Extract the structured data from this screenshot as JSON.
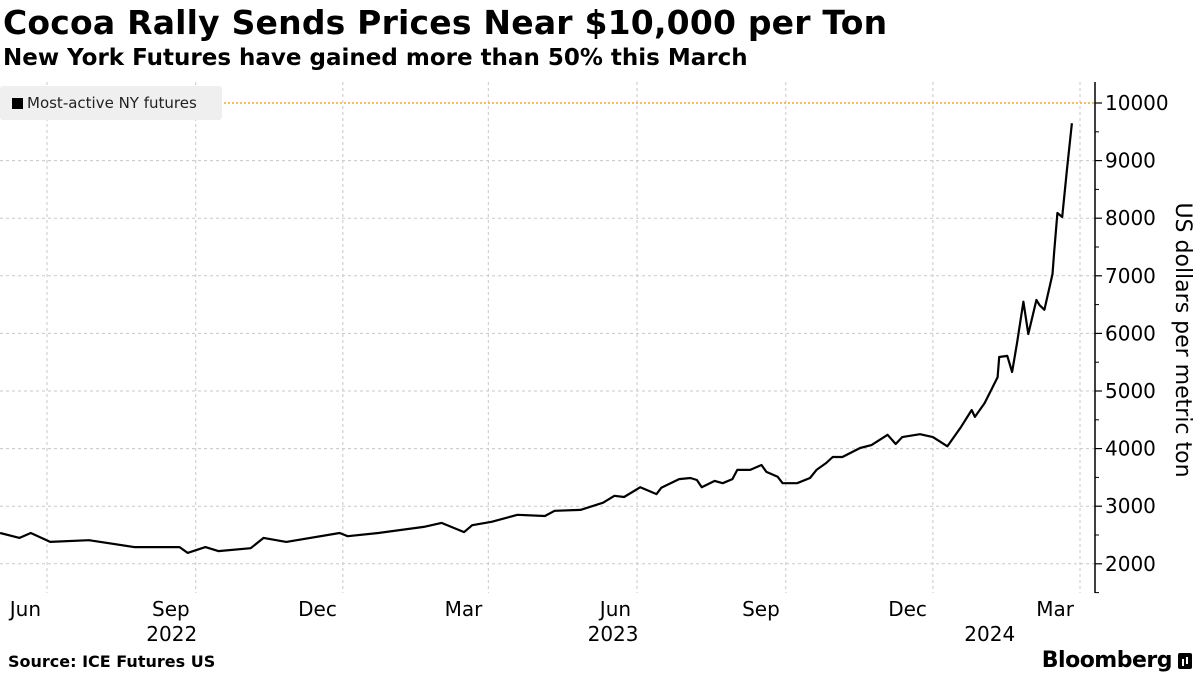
{
  "header": {
    "title": "Cocoa Rally Sends Prices Near $10,000 per Ton",
    "subtitle": "New York Futures have gained more than 50% this March"
  },
  "footer": {
    "source": "Source: ICE Futures US",
    "logo": "Bloomberg"
  },
  "chart_data": {
    "type": "line",
    "title": "Cocoa Rally Sends Prices Near $10,000 per Ton",
    "subtitle": "New York Futures have gained more than 50% this March",
    "ylabel": "US dollars per metric ton",
    "xlabel": "",
    "ylim": [
      1500,
      10300
    ],
    "y_ticks": [
      2000,
      3000,
      4000,
      5000,
      6000,
      7000,
      8000,
      9000,
      10000
    ],
    "x_ticks": [
      {
        "date": "2022-06-01",
        "label": "Jun"
      },
      {
        "date": "2022-09-01",
        "label": "Sep"
      },
      {
        "date": "2022-12-01",
        "label": "Dec"
      },
      {
        "date": "2023-03-01",
        "label": "Mar"
      },
      {
        "date": "2023-06-01",
        "label": "Jun"
      },
      {
        "date": "2023-09-01",
        "label": "Sep"
      },
      {
        "date": "2023-12-01",
        "label": "Dec"
      },
      {
        "date": "2024-03-01",
        "label": "Mar"
      }
    ],
    "year_labels": [
      {
        "date": "2022-09-01",
        "label": "2022"
      },
      {
        "date": "2023-06-01",
        "label": "2023"
      },
      {
        "date": "2024-01-20",
        "label": "2024"
      }
    ],
    "grid": true,
    "legend_position": "top-left",
    "reference_line": {
      "value": 10000,
      "color": "#f5a623"
    },
    "series": [
      {
        "name": "Most-active NY futures",
        "color": "#000000",
        "points": [
          [
            "2022-05-03",
            2535
          ],
          [
            "2022-05-15",
            2450
          ],
          [
            "2022-05-22",
            2535
          ],
          [
            "2022-06-03",
            2380
          ],
          [
            "2022-06-27",
            2410
          ],
          [
            "2022-07-25",
            2290
          ],
          [
            "2022-08-22",
            2290
          ],
          [
            "2022-08-27",
            2190
          ],
          [
            "2022-09-07",
            2290
          ],
          [
            "2022-09-15",
            2220
          ],
          [
            "2022-10-05",
            2270
          ],
          [
            "2022-10-13",
            2450
          ],
          [
            "2022-10-27",
            2380
          ],
          [
            "2022-11-29",
            2535
          ],
          [
            "2022-12-04",
            2480
          ],
          [
            "2022-12-23",
            2535
          ],
          [
            "2023-01-20",
            2640
          ],
          [
            "2023-01-31",
            2710
          ],
          [
            "2023-02-14",
            2550
          ],
          [
            "2023-02-19",
            2670
          ],
          [
            "2023-03-03",
            2730
          ],
          [
            "2023-03-19",
            2850
          ],
          [
            "2023-04-05",
            2830
          ],
          [
            "2023-04-11",
            2920
          ],
          [
            "2023-04-27",
            2935
          ],
          [
            "2023-05-11",
            3060
          ],
          [
            "2023-05-18",
            3180
          ],
          [
            "2023-05-24",
            3160
          ],
          [
            "2023-06-03",
            3330
          ],
          [
            "2023-06-13",
            3210
          ],
          [
            "2023-06-16",
            3320
          ],
          [
            "2023-06-27",
            3470
          ],
          [
            "2023-07-04",
            3490
          ],
          [
            "2023-07-08",
            3455
          ],
          [
            "2023-07-11",
            3330
          ],
          [
            "2023-07-19",
            3440
          ],
          [
            "2023-07-24",
            3400
          ],
          [
            "2023-07-30",
            3470
          ],
          [
            "2023-08-02",
            3630
          ],
          [
            "2023-08-10",
            3630
          ],
          [
            "2023-08-17",
            3715
          ],
          [
            "2023-08-20",
            3595
          ],
          [
            "2023-08-27",
            3510
          ],
          [
            "2023-08-30",
            3400
          ],
          [
            "2023-09-08",
            3400
          ],
          [
            "2023-09-16",
            3490
          ],
          [
            "2023-09-20",
            3630
          ],
          [
            "2023-09-26",
            3750
          ],
          [
            "2023-09-30",
            3855
          ],
          [
            "2023-10-06",
            3855
          ],
          [
            "2023-10-17",
            4010
          ],
          [
            "2023-10-24",
            4060
          ],
          [
            "2023-11-03",
            4240
          ],
          [
            "2023-11-08",
            4080
          ],
          [
            "2023-11-12",
            4200
          ],
          [
            "2023-11-23",
            4250
          ],
          [
            "2023-12-01",
            4200
          ],
          [
            "2023-12-10",
            4040
          ],
          [
            "2023-12-18",
            4360
          ],
          [
            "2023-12-25",
            4670
          ],
          [
            "2023-12-27",
            4550
          ],
          [
            "2024-01-02",
            4790
          ],
          [
            "2024-01-07",
            5070
          ],
          [
            "2024-01-10",
            5240
          ],
          [
            "2024-01-11",
            5590
          ],
          [
            "2024-01-16",
            5610
          ],
          [
            "2024-01-19",
            5330
          ],
          [
            "2024-01-22",
            5830
          ],
          [
            "2024-01-26",
            6550
          ],
          [
            "2024-01-29",
            5990
          ],
          [
            "2024-02-03",
            6580
          ],
          [
            "2024-02-05",
            6490
          ],
          [
            "2024-02-08",
            6410
          ],
          [
            "2024-02-13",
            7030
          ],
          [
            "2024-02-14",
            7400
          ],
          [
            "2024-02-16",
            8090
          ],
          [
            "2024-02-19",
            8020
          ],
          [
            "2024-02-22",
            8870
          ],
          [
            "2024-02-25",
            9650
          ]
        ]
      }
    ]
  }
}
